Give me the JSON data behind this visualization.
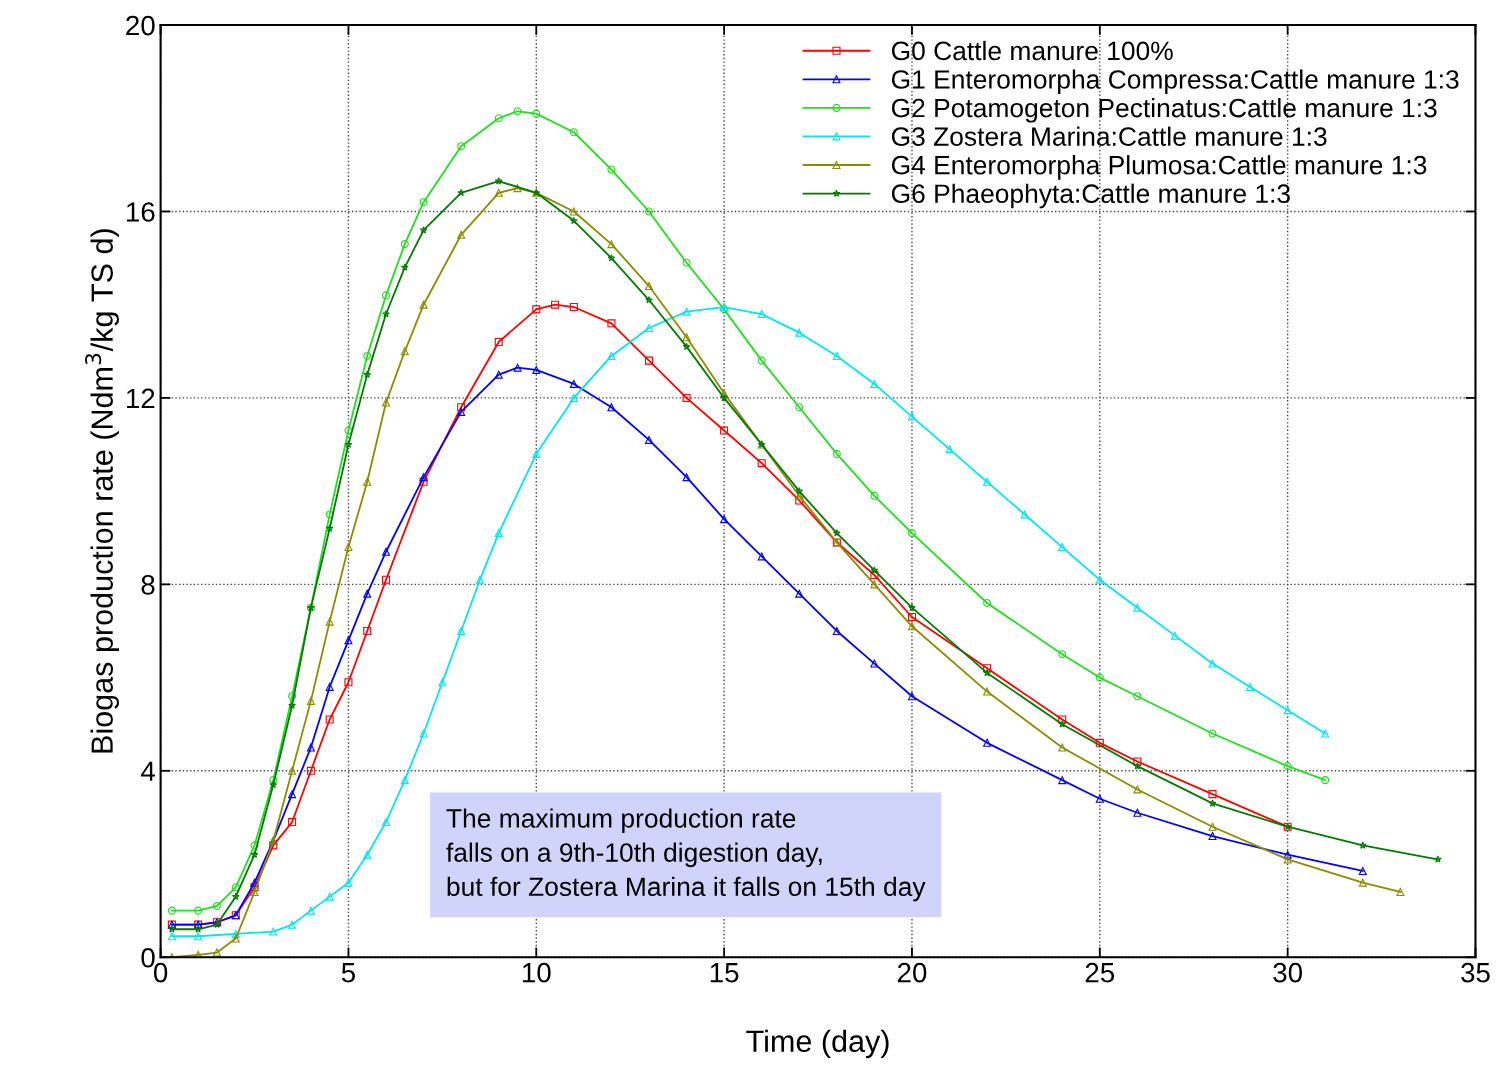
{
  "chart_data": {
    "type": "line",
    "xlabel": "Time (day)",
    "ylabel": "Biogas production rate (Ndm$^{3}$/kg TS d)",
    "xlim": [
      0,
      35
    ],
    "xticks": [
      0,
      5,
      10,
      15,
      20,
      25,
      30,
      35
    ],
    "ylim": [
      0,
      20
    ],
    "yticks": [
      0,
      4,
      8,
      12,
      16,
      20
    ],
    "grid": true,
    "legend": "top right",
    "line_style": "solid",
    "annotations": [
      "The maximum production rate\nfalls on a 9th-10th digestion day,\nbut for Zostera Marina it falls on 15th day"
    ],
    "series": [
      {
        "name": "G0 Cattle manure 100%",
        "color": "#ff0000",
        "marker": "square",
        "x": [
          0.3,
          1,
          1.5,
          2,
          2.5,
          3,
          3.5,
          4,
          4.5,
          5,
          5.5,
          6,
          7,
          8,
          9,
          10,
          10.5,
          11,
          12,
          13,
          14,
          15,
          16,
          17,
          18,
          19,
          20,
          22,
          24,
          25,
          26,
          28,
          30
        ],
        "values": [
          0.7,
          0.7,
          0.75,
          0.9,
          1.5,
          2.4,
          2.9,
          4.0,
          5.1,
          5.9,
          7.0,
          8.1,
          10.2,
          11.8,
          13.2,
          13.9,
          14.0,
          13.95,
          13.6,
          12.8,
          12.0,
          11.3,
          10.6,
          9.8,
          8.9,
          8.2,
          7.3,
          6.2,
          5.1,
          4.6,
          4.2,
          3.5,
          2.8
        ]
      },
      {
        "name": "G1 Enteromorpha Compressa:Cattle manure 1:3",
        "color": "#0000ff",
        "marker": "triangle",
        "x": [
          0.3,
          1,
          1.5,
          2,
          2.5,
          3,
          3.5,
          4,
          4.5,
          5,
          5.5,
          6,
          7,
          8,
          9,
          9.5,
          10,
          11,
          12,
          13,
          14,
          15,
          16,
          17,
          18,
          19,
          20,
          22,
          24,
          25,
          26,
          28,
          30,
          32
        ],
        "values": [
          0.7,
          0.7,
          0.75,
          0.9,
          1.6,
          2.5,
          3.5,
          4.5,
          5.8,
          6.8,
          7.8,
          8.7,
          10.3,
          11.7,
          12.5,
          12.65,
          12.6,
          12.3,
          11.8,
          11.1,
          10.3,
          9.4,
          8.6,
          7.8,
          7.0,
          6.3,
          5.6,
          4.6,
          3.8,
          3.4,
          3.1,
          2.6,
          2.2,
          1.85
        ]
      },
      {
        "name": "G2 Potamogeton Pectinatus:Cattle manure 1:3",
        "color": "#22dd22",
        "marker": "circle",
        "x": [
          0.3,
          1,
          1.5,
          2,
          2.5,
          3,
          3.5,
          4,
          4.5,
          5,
          5.5,
          6,
          6.5,
          7,
          8,
          9,
          9.5,
          10,
          11,
          12,
          13,
          14,
          15,
          16,
          17,
          18,
          19,
          20,
          22,
          24,
          25,
          26,
          28,
          30,
          31
        ],
        "values": [
          1.0,
          1.0,
          1.1,
          1.5,
          2.4,
          3.8,
          5.6,
          7.5,
          9.5,
          11.3,
          12.9,
          14.2,
          15.3,
          16.2,
          17.4,
          18.0,
          18.15,
          18.1,
          17.7,
          16.9,
          16.0,
          14.9,
          13.9,
          12.8,
          11.8,
          10.8,
          9.9,
          9.1,
          7.6,
          6.5,
          6.0,
          5.6,
          4.8,
          4.1,
          3.8
        ]
      },
      {
        "name": "G3 Zostera Marina:Cattle manure 1:3",
        "color": "#00e5ee",
        "marker": "triangle",
        "x": [
          0.3,
          1,
          2,
          3,
          3.5,
          4,
          4.5,
          5,
          5.5,
          6,
          6.5,
          7,
          7.5,
          8,
          8.5,
          9,
          10,
          11,
          12,
          13,
          14,
          15,
          16,
          17,
          18,
          19,
          20,
          21,
          22,
          23,
          24,
          25,
          26,
          27,
          28,
          29,
          30,
          31
        ],
        "values": [
          0.45,
          0.45,
          0.5,
          0.55,
          0.7,
          1.0,
          1.3,
          1.6,
          2.2,
          2.9,
          3.8,
          4.8,
          5.9,
          7.0,
          8.1,
          9.1,
          10.8,
          12.0,
          12.9,
          13.5,
          13.85,
          13.95,
          13.8,
          13.4,
          12.9,
          12.3,
          11.6,
          10.9,
          10.2,
          9.5,
          8.8,
          8.1,
          7.5,
          6.9,
          6.3,
          5.8,
          5.3,
          4.8
        ]
      },
      {
        "name": "G4 Enteromorpha Plumosa:Cattle manure 1:3",
        "color": "#8b8b00",
        "marker": "triangle",
        "x": [
          0.3,
          1,
          1.5,
          2,
          2.5,
          3,
          3.5,
          4,
          4.5,
          5,
          5.5,
          6,
          6.5,
          7,
          8,
          9,
          9.5,
          10,
          11,
          12,
          13,
          14,
          15,
          16,
          17,
          18,
          19,
          20,
          22,
          24,
          26,
          28,
          30,
          32,
          33
        ],
        "values": [
          0.0,
          0.05,
          0.1,
          0.4,
          1.4,
          2.5,
          4.0,
          5.5,
          7.2,
          8.8,
          10.2,
          11.9,
          13.0,
          14.0,
          15.5,
          16.4,
          16.5,
          16.4,
          16.0,
          15.3,
          14.4,
          13.3,
          12.1,
          11.0,
          9.9,
          8.9,
          8.0,
          7.1,
          5.7,
          4.5,
          3.6,
          2.8,
          2.1,
          1.6,
          1.4
        ]
      },
      {
        "name": "G6 Phaeophyta:Cattle manure 1:3",
        "color": "#007a00",
        "marker": "star",
        "x": [
          0.3,
          1,
          1.5,
          2,
          2.5,
          3,
          3.5,
          4,
          4.5,
          5,
          5.5,
          6,
          6.5,
          7,
          8,
          9,
          10,
          11,
          12,
          13,
          14,
          15,
          16,
          17,
          18,
          19,
          20,
          22,
          24,
          26,
          28,
          30,
          32,
          34
        ],
        "values": [
          0.6,
          0.6,
          0.7,
          1.3,
          2.2,
          3.7,
          5.4,
          7.5,
          9.2,
          11.0,
          12.5,
          13.8,
          14.8,
          15.6,
          16.4,
          16.65,
          16.4,
          15.8,
          15.0,
          14.1,
          13.1,
          12.0,
          11.0,
          10.0,
          9.1,
          8.3,
          7.5,
          6.1,
          5.0,
          4.1,
          3.3,
          2.8,
          2.4,
          2.1
        ]
      }
    ]
  }
}
